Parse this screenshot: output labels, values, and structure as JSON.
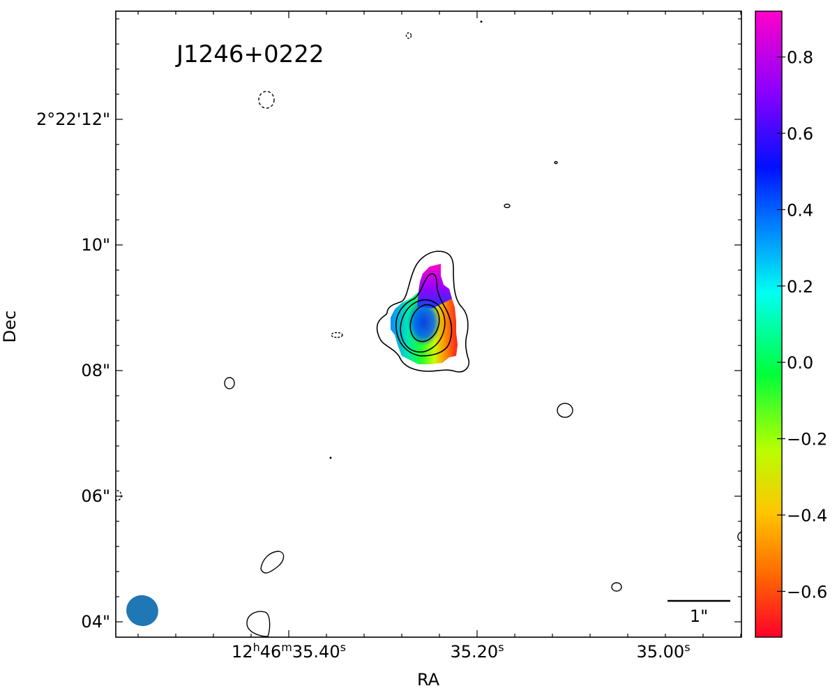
{
  "source_name": "J1246+0222",
  "axes": {
    "x_title": "RA",
    "y_title": "Dec"
  },
  "ra_ticks": [
    {
      "label": "12h46m35.40s",
      "ra_s": 35.4
    },
    {
      "label": "35.20s",
      "ra_s": 35.2
    },
    {
      "label": "35.00s",
      "ra_s": 35.0
    }
  ],
  "dec_ticks": [
    {
      "label": "2°22'12\"",
      "dec_arcsec_offset": 12
    },
    {
      "label": "10\"",
      "dec_arcsec_offset": 10
    },
    {
      "label": "08\"",
      "dec_arcsec_offset": 8
    },
    {
      "label": "06\"",
      "dec_arcsec_offset": 6
    },
    {
      "label": "04\"",
      "dec_arcsec_offset": 4
    }
  ],
  "colorbar": {
    "min": -0.72,
    "max": 0.92,
    "ticks": [
      {
        "value": 0.8,
        "label": "0.8"
      },
      {
        "value": 0.6,
        "label": "0.6"
      },
      {
        "value": 0.4,
        "label": "0.4"
      },
      {
        "value": 0.2,
        "label": "0.2"
      },
      {
        "value": 0.0,
        "label": "0.0"
      },
      {
        "value": -0.2,
        "label": "−0.2"
      },
      {
        "value": -0.4,
        "label": "−0.4"
      },
      {
        "value": -0.6,
        "label": "−0.6"
      }
    ],
    "colormap": "gist_rainbow"
  },
  "scalebar": {
    "label": "1\""
  },
  "beam": {
    "color": "#1f77b4"
  },
  "contour_color": "#000000"
}
